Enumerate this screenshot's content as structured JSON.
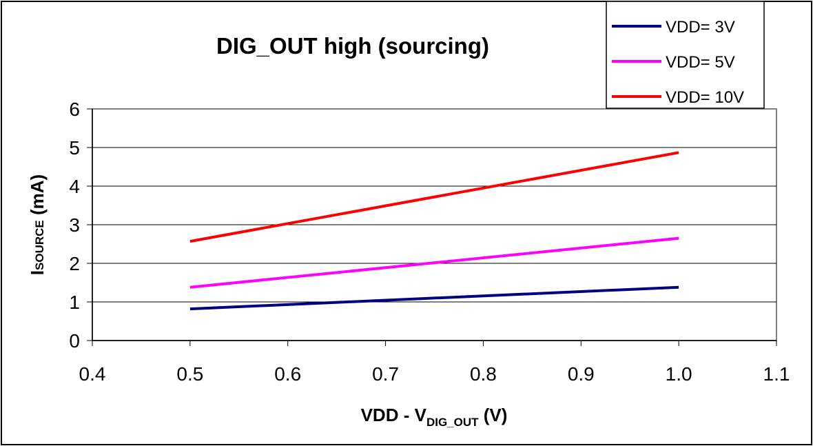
{
  "chart_data": {
    "type": "line",
    "title": "DIG_OUT high (sourcing)",
    "xlabel": {
      "main": "VDD - V",
      "sub": "DIG_OUT",
      "unit": " (V)"
    },
    "ylabel": {
      "main": "I",
      "sub": "SOURCE",
      "unit": " (mA)"
    },
    "x_ticks": [
      "0.4",
      "0.5",
      "0.6",
      "0.7",
      "0.8",
      "0.9",
      "1.0",
      "1.1"
    ],
    "y_ticks": [
      "0",
      "1",
      "2",
      "3",
      "4",
      "5",
      "6"
    ],
    "xlim": [
      0.4,
      1.1
    ],
    "ylim": [
      0,
      6
    ],
    "grid": "horizontal",
    "legend_position": "top-right",
    "x": [
      0.5,
      1.0
    ],
    "series": [
      {
        "name": "VDD= 3V",
        "color": "#000080",
        "values": [
          0.82,
          1.38
        ]
      },
      {
        "name": "VDD= 5V",
        "color": "#ff00ff",
        "values": [
          1.38,
          2.65
        ]
      },
      {
        "name": "VDD= 10V",
        "color": "#ff0000",
        "values": [
          2.57,
          4.87
        ]
      }
    ]
  }
}
